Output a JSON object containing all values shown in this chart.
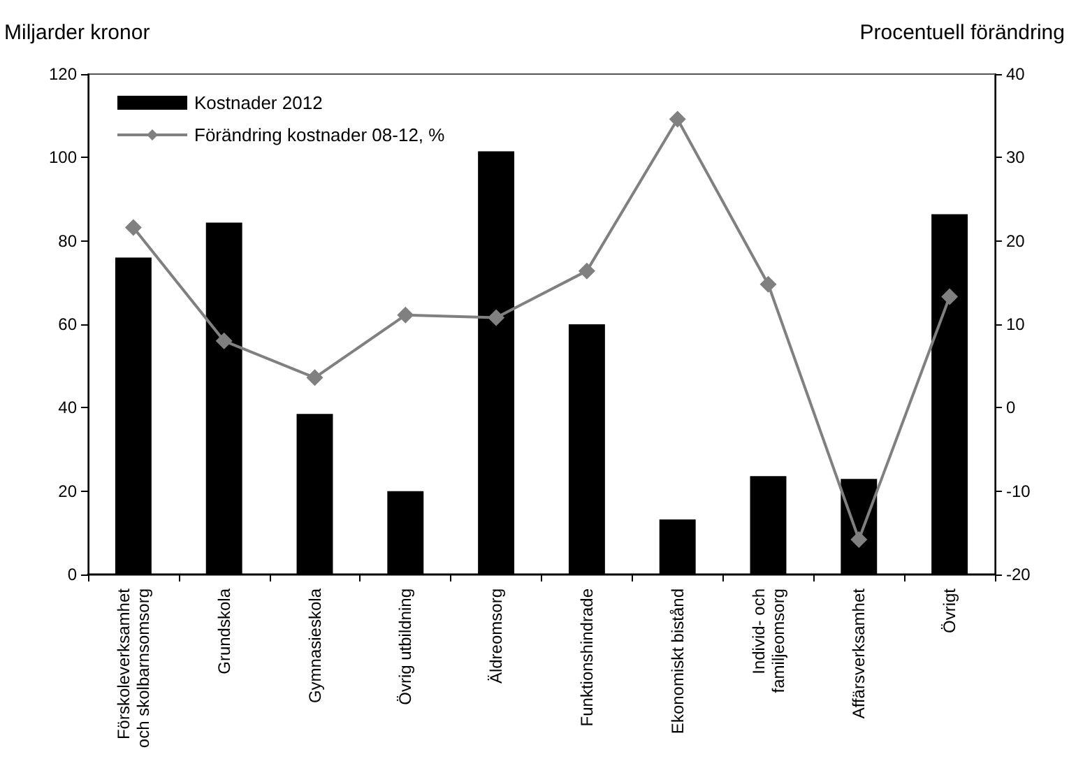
{
  "chart_data": {
    "type": "bar",
    "ylabel": "Miljarder kronor",
    "y2label": "Procentuell förändring",
    "categories": [
      "Förskoleverksamhet\noch skolbarnsomsorg",
      "Grundskola",
      "Gymnasieskola",
      "Övrig utbildning",
      "Äldreomsorg",
      "Funktionshindrade",
      "Ekonomiskt bistånd",
      "Individ- och\nfamiljeomsorg",
      "Affärsverksamhet",
      "Övrigt"
    ],
    "series": [
      {
        "name": "Kostnader 2012",
        "color": "#000000",
        "values": [
          76,
          84.4,
          38.5,
          20,
          101.5,
          60,
          13.2,
          23.6,
          22.9,
          86.4
        ]
      },
      {
        "name": "Förändring kostnader 08-12, %",
        "type": "line",
        "axis": "y2",
        "color": "#808080",
        "marker": "diamond",
        "values": [
          21.6,
          8,
          3.6,
          11.1,
          10.8,
          16.4,
          34.6,
          14.8,
          -15.8,
          13.3
        ]
      }
    ],
    "ylim": [
      0,
      120
    ],
    "yticks": [
      0,
      20,
      40,
      60,
      80,
      100,
      120
    ],
    "y2lim": [
      -20,
      40
    ],
    "y2ticks": [
      -20,
      -10,
      0,
      10,
      20,
      30,
      40
    ],
    "grid": false,
    "legend": "top left"
  }
}
